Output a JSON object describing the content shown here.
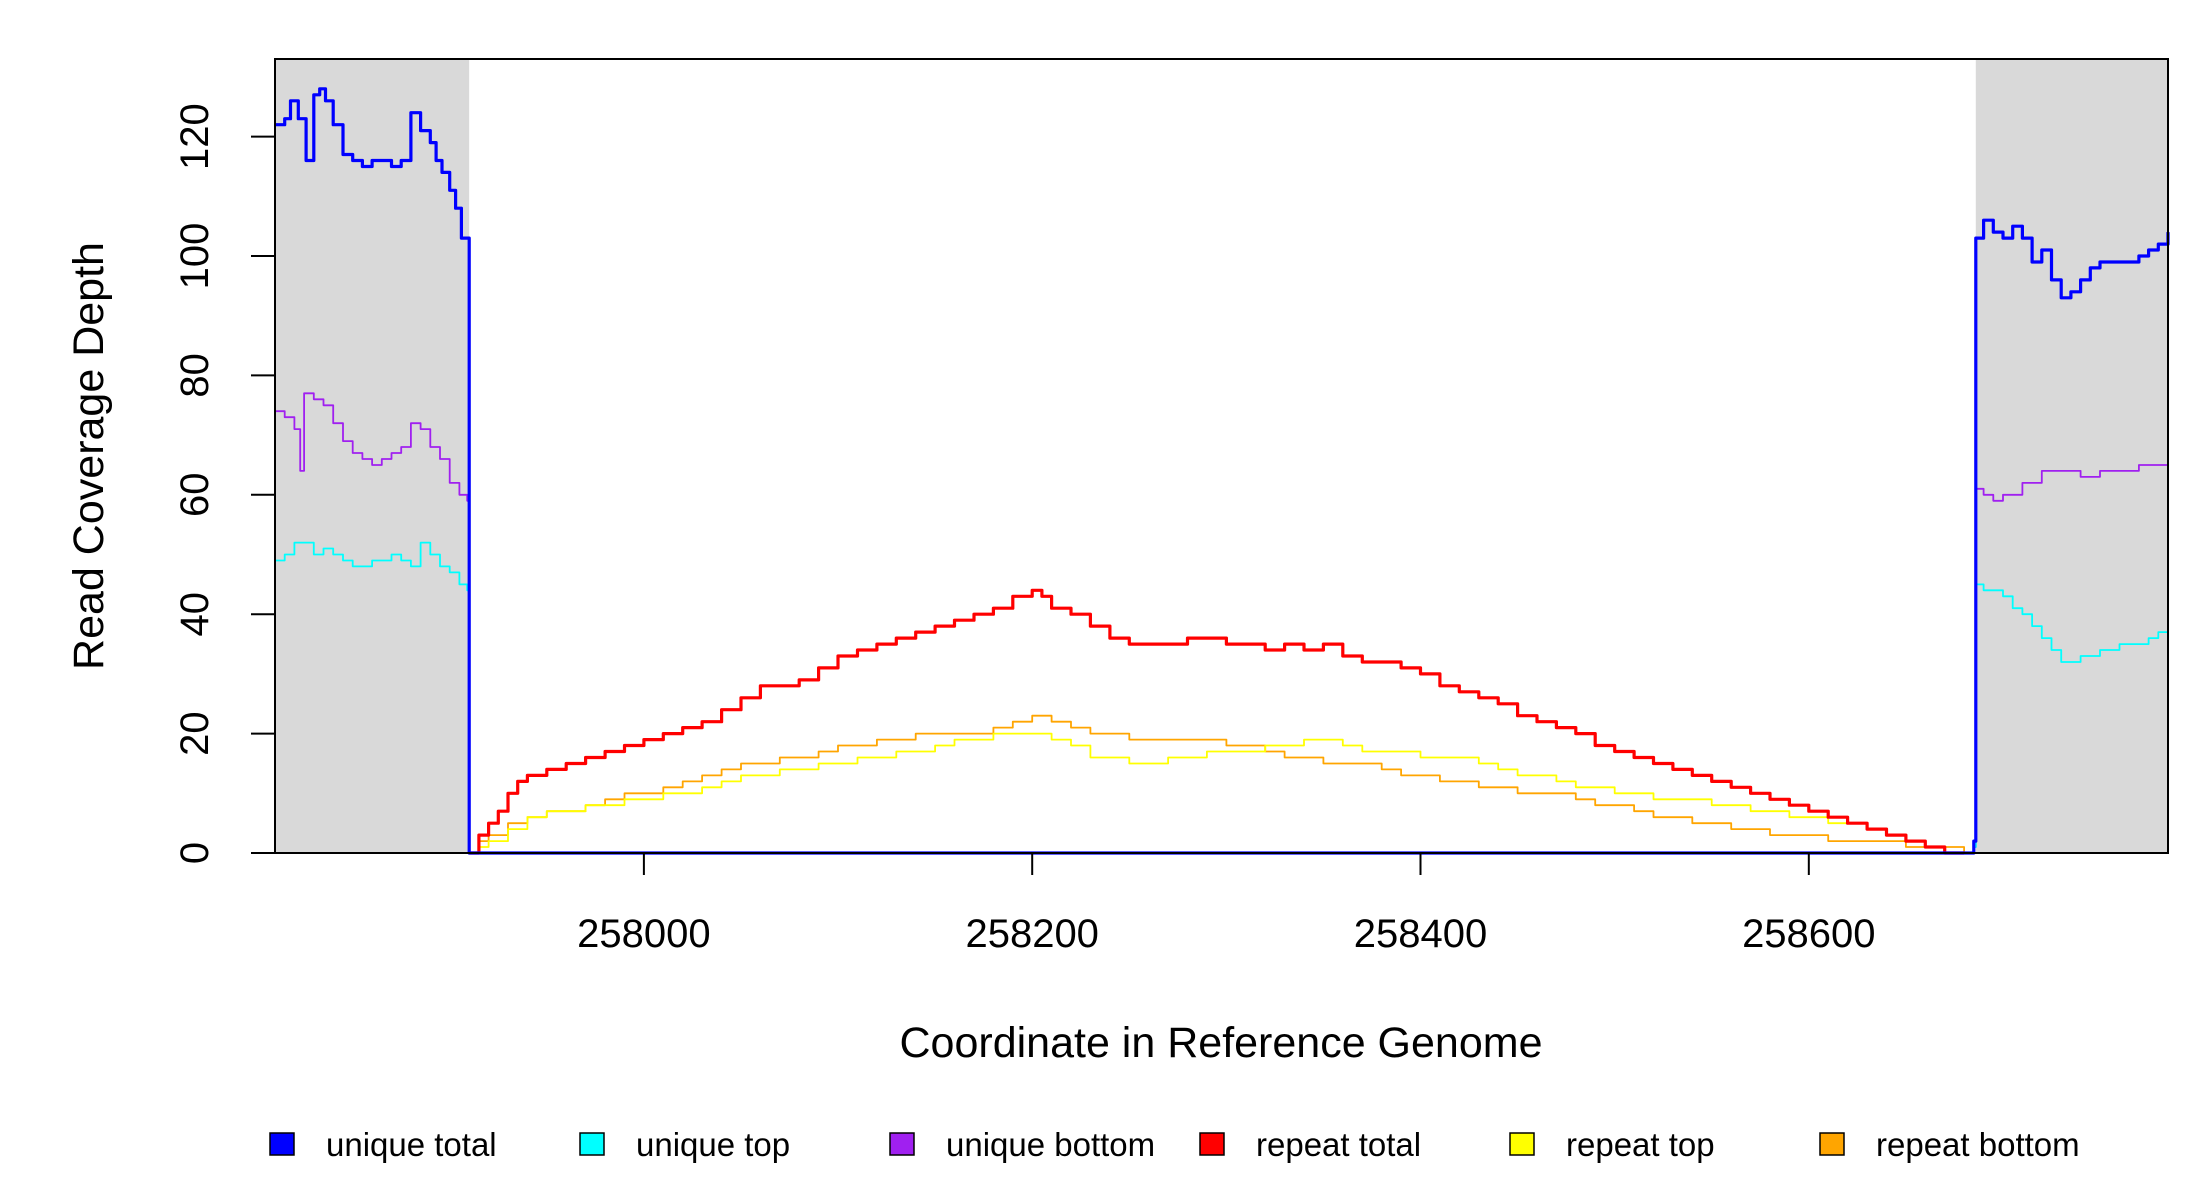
{
  "chart_data": {
    "type": "line",
    "title": "",
    "xlabel": "Coordinate in Reference Genome",
    "ylabel": "Read Coverage Depth",
    "xlim": [
      257810,
      258785
    ],
    "ylim": [
      0,
      133
    ],
    "xticks": [
      258000,
      258200,
      258400,
      258600
    ],
    "yticks": [
      0,
      20,
      40,
      60,
      80,
      100,
      120
    ],
    "grid": false,
    "shaded_regions": [
      {
        "x0": 257810,
        "x1": 257910,
        "color": "#d9d9d9"
      },
      {
        "x0": 258686,
        "x1": 258785,
        "color": "#d9d9d9"
      }
    ],
    "legend_position": "bottom",
    "series": [
      {
        "name": "unique total",
        "color": "#0000ff",
        "x": [
          257810,
          257815,
          257818,
          257822,
          257826,
          257830,
          257833,
          257836,
          257840,
          257845,
          257850,
          257855,
          257860,
          257865,
          257870,
          257875,
          257880,
          257885,
          257890,
          257893,
          257896,
          257900,
          257903,
          257906,
          257909,
          257910,
          257911,
          258680,
          258685,
          258686,
          258690,
          258695,
          258700,
          258705,
          258710,
          258715,
          258720,
          258725,
          258730,
          258735,
          258740,
          258745,
          258750,
          258760,
          258770,
          258775,
          258780,
          258785
        ],
        "y": [
          122,
          123,
          126,
          123,
          116,
          127,
          128,
          126,
          122,
          117,
          116,
          115,
          116,
          116,
          115,
          116,
          124,
          121,
          119,
          116,
          114,
          111,
          108,
          103,
          103,
          0,
          0,
          0,
          2,
          103,
          106,
          104,
          103,
          105,
          103,
          99,
          101,
          96,
          93,
          94,
          96,
          98,
          99,
          99,
          100,
          101,
          102,
          104
        ]
      },
      {
        "name": "unique top",
        "color": "#00ffff",
        "x": [
          257810,
          257815,
          257820,
          257825,
          257830,
          257835,
          257840,
          257845,
          257850,
          257860,
          257870,
          257875,
          257880,
          257885,
          257890,
          257895,
          257900,
          257905,
          257909,
          257910,
          257911,
          258680,
          258685,
          258686,
          258690,
          258695,
          258700,
          258705,
          258710,
          258715,
          258720,
          258725,
          258730,
          258740,
          258750,
          258760,
          258770,
          258775,
          258780,
          258785
        ],
        "y": [
          49,
          50,
          52,
          52,
          50,
          51,
          50,
          49,
          48,
          49,
          50,
          49,
          48,
          52,
          50,
          48,
          47,
          45,
          44,
          0,
          0,
          0,
          1,
          45,
          44,
          44,
          43,
          41,
          40,
          38,
          36,
          34,
          32,
          33,
          34,
          35,
          35,
          36,
          37,
          38
        ]
      },
      {
        "name": "unique bottom",
        "color": "#a020f0",
        "x": [
          257810,
          257815,
          257820,
          257823,
          257825,
          257830,
          257835,
          257840,
          257845,
          257850,
          257855,
          257860,
          257865,
          257870,
          257875,
          257880,
          257885,
          257890,
          257895,
          257900,
          257905,
          257909,
          257910,
          257911,
          258680,
          258685,
          258686,
          258690,
          258695,
          258700,
          258710,
          258720,
          258730,
          258740,
          258750,
          258760,
          258770,
          258780,
          258785
        ],
        "y": [
          74,
          73,
          71,
          64,
          77,
          76,
          75,
          72,
          69,
          67,
          66,
          65,
          66,
          67,
          68,
          72,
          71,
          68,
          66,
          62,
          60,
          59,
          0,
          0,
          0,
          1,
          61,
          60,
          59,
          60,
          62,
          64,
          64,
          63,
          64,
          64,
          65,
          65,
          66
        ]
      },
      {
        "name": "repeat total",
        "color": "#ff0000",
        "x": [
          257910,
          257915,
          257920,
          257925,
          257930,
          257935,
          257940,
          257950,
          257960,
          257970,
          257980,
          257990,
          258000,
          258010,
          258020,
          258030,
          258040,
          258050,
          258060,
          258070,
          258080,
          258090,
          258100,
          258110,
          258120,
          258130,
          258140,
          258150,
          258160,
          258170,
          258180,
          258190,
          258200,
          258205,
          258210,
          258220,
          258230,
          258240,
          258250,
          258260,
          258270,
          258280,
          258290,
          258300,
          258310,
          258320,
          258330,
          258340,
          258350,
          258355,
          258360,
          258370,
          258380,
          258390,
          258400,
          258410,
          258420,
          258430,
          258440,
          258450,
          258460,
          258470,
          258480,
          258490,
          258500,
          258510,
          258520,
          258530,
          258540,
          258550,
          258560,
          258570,
          258580,
          258590,
          258600,
          258610,
          258620,
          258630,
          258640,
          258650,
          258660,
          258670,
          258680
        ],
        "y": [
          0,
          3,
          5,
          7,
          10,
          12,
          13,
          14,
          15,
          16,
          17,
          18,
          19,
          20,
          21,
          22,
          24,
          26,
          28,
          28,
          29,
          31,
          33,
          34,
          35,
          36,
          37,
          38,
          39,
          40,
          41,
          43,
          44,
          43,
          41,
          40,
          38,
          36,
          35,
          35,
          35,
          36,
          36,
          35,
          35,
          34,
          35,
          34,
          35,
          35,
          33,
          32,
          32,
          31,
          30,
          28,
          27,
          26,
          25,
          23,
          22,
          21,
          20,
          18,
          17,
          16,
          15,
          14,
          13,
          12,
          11,
          10,
          9,
          8,
          7,
          6,
          5,
          4,
          3,
          2,
          1,
          0,
          0
        ]
      },
      {
        "name": "repeat top",
        "color": "#ffff00",
        "x": [
          257910,
          257915,
          257920,
          257930,
          257940,
          257950,
          257960,
          257970,
          257980,
          257990,
          258000,
          258010,
          258020,
          258030,
          258040,
          258050,
          258060,
          258070,
          258080,
          258090,
          258100,
          258110,
          258120,
          258130,
          258140,
          258150,
          258160,
          258170,
          258180,
          258190,
          258200,
          258210,
          258220,
          258230,
          258240,
          258250,
          258260,
          258270,
          258280,
          258290,
          258300,
          258310,
          258320,
          258330,
          258340,
          258350,
          258360,
          258370,
          258380,
          258390,
          258400,
          258410,
          258420,
          258430,
          258440,
          258450,
          258460,
          258470,
          258480,
          258490,
          258500,
          258510,
          258520,
          258530,
          258540,
          258550,
          258560,
          258570,
          258580,
          258590,
          258600,
          258610,
          258620,
          258630,
          258640,
          258650,
          258660,
          258670,
          258680
        ],
        "y": [
          0,
          1,
          2,
          4,
          6,
          7,
          7,
          8,
          8,
          9,
          9,
          10,
          10,
          11,
          12,
          13,
          13,
          14,
          14,
          15,
          15,
          16,
          16,
          17,
          17,
          18,
          19,
          19,
          20,
          20,
          20,
          19,
          18,
          16,
          16,
          15,
          15,
          16,
          16,
          17,
          17,
          17,
          18,
          18,
          19,
          19,
          18,
          17,
          17,
          17,
          16,
          16,
          16,
          15,
          14,
          13,
          13,
          12,
          11,
          11,
          10,
          10,
          9,
          9,
          9,
          8,
          8,
          7,
          7,
          6,
          6,
          5,
          5,
          4,
          3,
          2,
          1,
          0,
          0
        ]
      },
      {
        "name": "repeat bottom",
        "color": "#ffa500",
        "x": [
          257910,
          257915,
          257920,
          257930,
          257940,
          257950,
          257960,
          257970,
          257980,
          257990,
          258000,
          258010,
          258020,
          258030,
          258040,
          258050,
          258060,
          258070,
          258080,
          258090,
          258100,
          258110,
          258120,
          258130,
          258140,
          258150,
          258160,
          258170,
          258180,
          258190,
          258200,
          258210,
          258220,
          258230,
          258240,
          258250,
          258260,
          258270,
          258280,
          258290,
          258300,
          258310,
          258320,
          258330,
          258340,
          258350,
          258360,
          258370,
          258380,
          258390,
          258400,
          258410,
          258420,
          258430,
          258440,
          258450,
          258460,
          258470,
          258480,
          258490,
          258500,
          258510,
          258520,
          258530,
          258540,
          258550,
          258560,
          258570,
          258580,
          258590,
          258600,
          258610,
          258620,
          258630,
          258640,
          258650,
          258660,
          258670,
          258680
        ],
        "y": [
          0,
          2,
          3,
          5,
          6,
          7,
          7,
          8,
          9,
          10,
          10,
          11,
          12,
          13,
          14,
          15,
          15,
          16,
          16,
          17,
          18,
          18,
          19,
          19,
          20,
          20,
          20,
          20,
          21,
          22,
          23,
          22,
          21,
          20,
          20,
          19,
          19,
          19,
          19,
          19,
          18,
          18,
          17,
          16,
          16,
          15,
          15,
          15,
          14,
          13,
          13,
          12,
          12,
          11,
          11,
          10,
          10,
          10,
          9,
          8,
          8,
          7,
          6,
          6,
          5,
          5,
          4,
          4,
          3,
          3,
          3,
          2,
          2,
          2,
          2,
          1,
          1,
          1,
          0
        ]
      }
    ]
  }
}
